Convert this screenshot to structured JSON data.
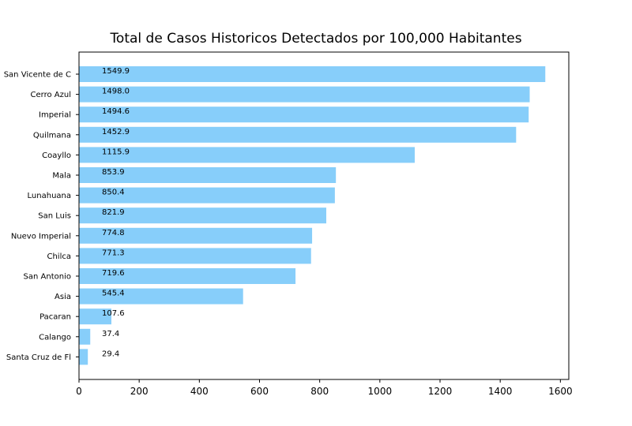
{
  "chart_data": {
    "type": "bar",
    "orientation": "horizontal",
    "title": "Total de Casos Historicos Detectados por 100,000 Habitantes",
    "xlabel": "",
    "ylabel": "",
    "xlim": [
      0,
      1628
    ],
    "xticks": [
      0,
      200,
      400,
      600,
      800,
      1000,
      1200,
      1400,
      1600
    ],
    "grid": false,
    "bar_color": "#87cefa",
    "categories": [
      "San Vicente de C",
      "Cerro Azul",
      "Imperial",
      "Quilmana",
      "Coayllo",
      "Mala",
      "Lunahuana",
      "San Luis",
      "Nuevo Imperial",
      "Chilca",
      "San Antonio",
      "Asia",
      "Pacaran",
      "Calango",
      "Santa Cruz de Fl"
    ],
    "values": [
      1549.9,
      1498.0,
      1494.6,
      1452.9,
      1115.9,
      853.9,
      850.4,
      821.9,
      774.8,
      771.3,
      719.6,
      545.4,
      107.6,
      37.4,
      29.4
    ],
    "value_labels": [
      "1549.9",
      "1498.0",
      "1494.6",
      "1452.9",
      "1115.9",
      "853.9",
      "850.4",
      "821.9",
      "774.8",
      "771.3",
      "719.6",
      "545.4",
      "107.6",
      "37.4",
      "29.4"
    ]
  }
}
